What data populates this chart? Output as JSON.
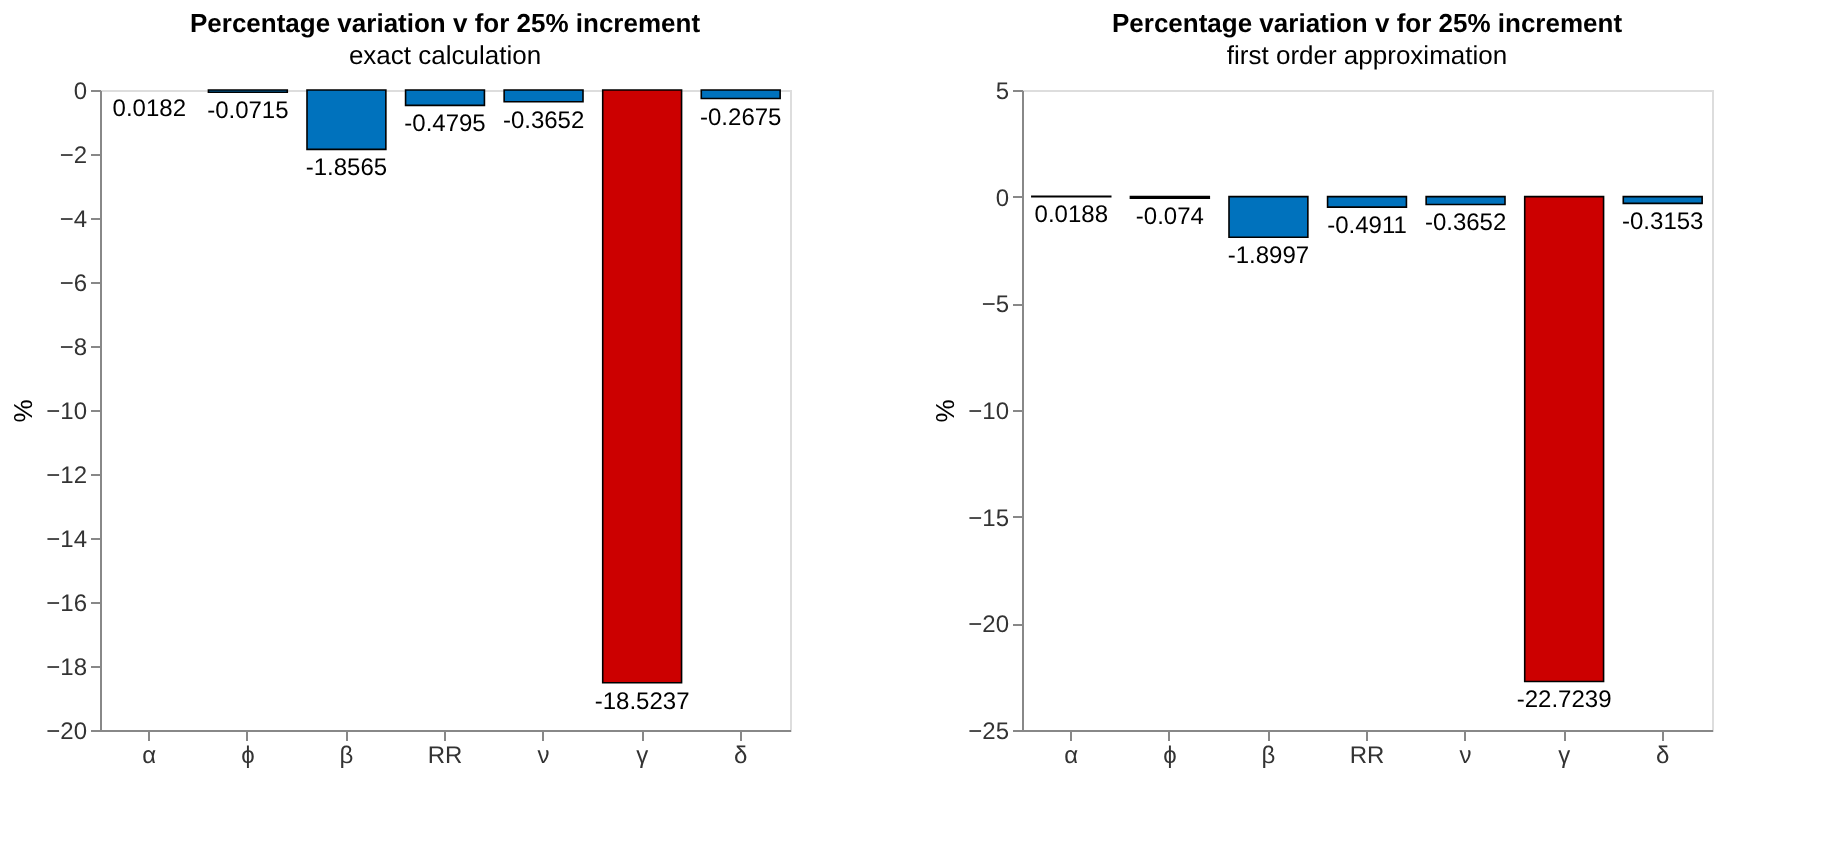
{
  "chart_data": [
    {
      "type": "bar",
      "title": "Percentage variation v for 25% increment",
      "subtitle": "exact calculation",
      "ylabel": "%",
      "categories": [
        "α",
        "ϕ",
        "β",
        "RR",
        "ν",
        "γ",
        "δ"
      ],
      "values": [
        null,
        -0.0715,
        -1.8565,
        -0.4795,
        -0.3652,
        -18.5237,
        -0.2675
      ],
      "value_labels": [
        "0.0182",
        "-0.0715",
        "-1.8565",
        "-0.4795",
        "-0.3652",
        "-18.5237",
        "-0.2675"
      ],
      "colors": [
        "#0072bd",
        "#0072bd",
        "#0072bd",
        "#0072bd",
        "#0072bd",
        "#cc0000",
        "#0072bd"
      ],
      "ylim": [
        -20,
        0
      ],
      "yticks": [
        -20,
        -18,
        -16,
        -14,
        -12,
        -10,
        -8,
        -6,
        -4,
        -2,
        0
      ],
      "grid": false
    },
    {
      "type": "bar",
      "title": "Percentage variation v for 25% increment",
      "subtitle": "first order approximation",
      "ylabel": "%",
      "categories": [
        "α",
        "ϕ",
        "β",
        "RR",
        "ν",
        "γ",
        "δ"
      ],
      "values": [
        0.0188,
        -0.074,
        -1.8997,
        -0.4911,
        -0.3652,
        -22.7239,
        -0.3153
      ],
      "colors": [
        "#0072bd",
        "#0072bd",
        "#0072bd",
        "#0072bd",
        "#0072bd",
        "#cc0000",
        "#0072bd"
      ],
      "ylim": [
        -25,
        5
      ],
      "yticks": [
        -25,
        -20,
        -15,
        -10,
        -5,
        0,
        5
      ],
      "data_labels": true,
      "grid": false
    }
  ]
}
